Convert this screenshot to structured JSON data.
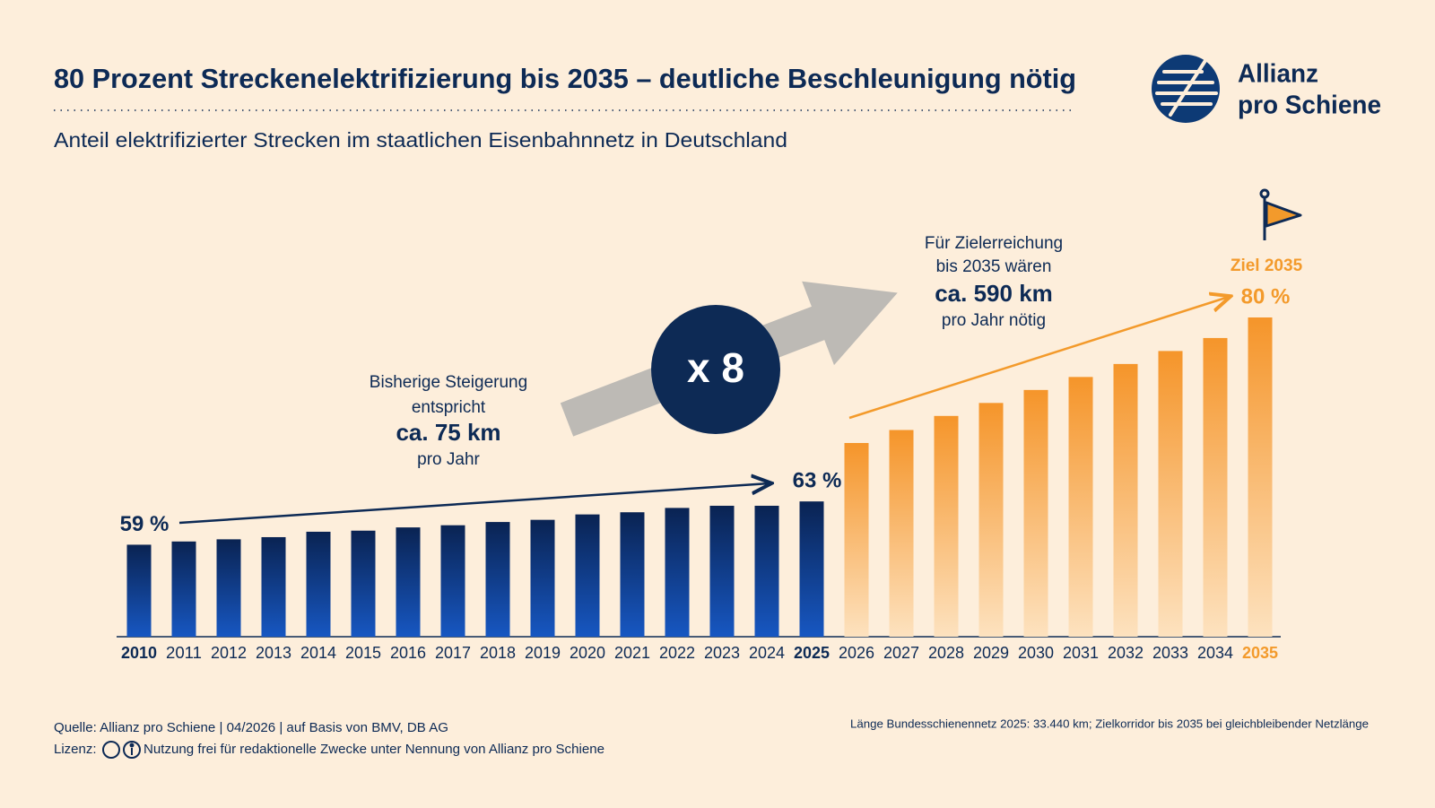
{
  "chart_data": {
    "type": "bar",
    "title": "80 Prozent Streckenelektrifizierung bis 2035 – deutliche Beschleunigung nötig",
    "subtitle": "Anteil elektrifizierter Strecken im staatlichen Eisenbahnnetz in Deutschland",
    "categories": [
      "2010",
      "2011",
      "2012",
      "2013",
      "2014",
      "2015",
      "2016",
      "2017",
      "2018",
      "2019",
      "2020",
      "2021",
      "2022",
      "2023",
      "2024",
      "2025",
      "2026",
      "2027",
      "2028",
      "2029",
      "2030",
      "2031",
      "2032",
      "2033",
      "2034",
      "2035"
    ],
    "series": [
      {
        "color": "#0d2a55",
        "gradient": [
          "#0a2352",
          "#1757c2"
        ],
        "values": [
          59,
          59.3,
          59.5,
          59.7,
          60.2,
          60.3,
          60.6,
          60.8,
          61.1,
          61.3,
          61.8,
          62,
          62.4,
          62.6,
          62.6,
          63,
          null,
          null,
          null,
          null,
          null,
          null,
          null,
          null,
          null,
          null
        ],
        "value_labels": [
          "59 %",
          null,
          null,
          null,
          null,
          null,
          null,
          null,
          null,
          null,
          null,
          null,
          null,
          null,
          null,
          "63 %",
          null,
          null,
          null,
          null,
          null,
          null,
          null,
          null,
          null,
          null
        ]
      },
      {
        "color": "#f39a2b",
        "gradient": [
          "#f5952a",
          "#fde2bf"
        ],
        "values": [
          null,
          null,
          null,
          null,
          null,
          null,
          null,
          null,
          null,
          null,
          null,
          null,
          null,
          null,
          null,
          null,
          68.4,
          69.6,
          70.9,
          72.1,
          73.3,
          74.5,
          75.7,
          76.9,
          78.1,
          80
        ],
        "value_labels": [
          null,
          null,
          null,
          null,
          null,
          null,
          null,
          null,
          null,
          null,
          null,
          null,
          null,
          null,
          null,
          null,
          null,
          null,
          null,
          null,
          null,
          null,
          null,
          null,
          null,
          "80 %"
        ]
      }
    ],
    "ylim": [
      50.5,
      80
    ],
    "annotations": {
      "past": [
        "Bisherige Steigerung",
        "entspricht",
        "ca. 75 km",
        "pro Jahr"
      ],
      "needed": [
        "Für Zielerreichung",
        "bis 2035 wären",
        "ca. 590 km",
        "pro Jahr nötig"
      ],
      "factor": "x 8",
      "goal": "Ziel 2035"
    }
  },
  "logo": [
    "Allianz",
    "pro Schiene"
  ],
  "footer": {
    "source": "Quelle: Allianz pro Schiene | 04/2026 | auf Basis von BMV, DB AG",
    "license_label": "Lizenz:",
    "license": "Nutzung frei für redaktionelle Zwecke unter Nennung von Allianz pro Schiene",
    "note": "Länge Bundesschienennetz 2025: 33.440 km; Zielkorridor bis 2035 bei gleichbleibender Netzlänge"
  }
}
